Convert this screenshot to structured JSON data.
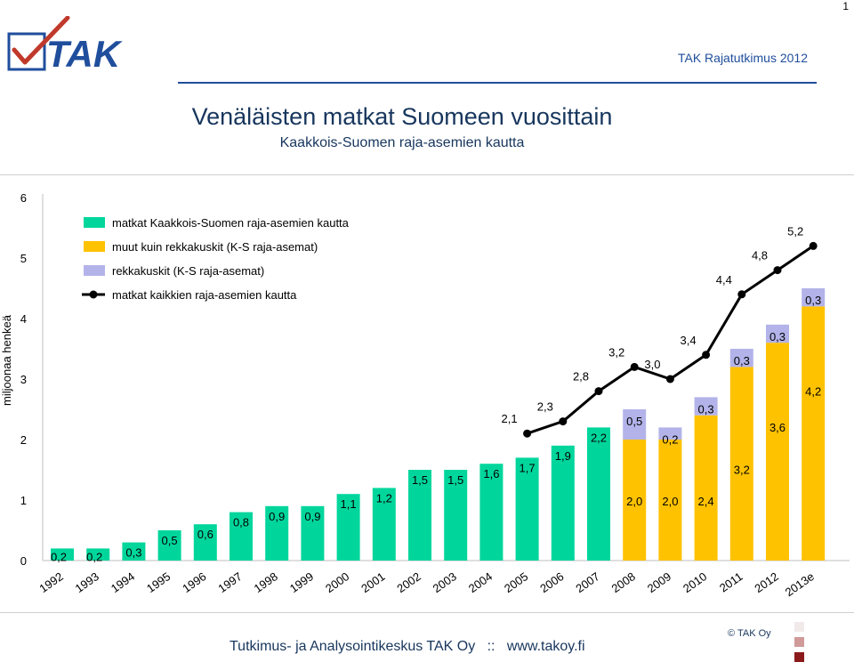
{
  "page_number": "1",
  "brand_text": "TAK Rajatutkimus 2012",
  "logo_text": "TAK",
  "footer": {
    "org": "Tutkimus- ja Analysointikeskus TAK Oy",
    "separator": "::",
    "url": "www.takoy.fi",
    "copyright": "© TAK Oy"
  },
  "colors": {
    "green": "#00d69c",
    "yellow": "#ffc200",
    "lavender": "#b3b3ea",
    "line": "#000000",
    "title": "#17365d",
    "brand": "#1f4e9c"
  },
  "chart_data": {
    "type": "bar",
    "title": "Venäläisten matkat Suomeen vuosittain",
    "subtitle": "Kaakkois-Suomen raja-asemien kautta",
    "ylabel": "miljoonaa henkeä",
    "xlabel": "",
    "ylim": [
      0,
      6
    ],
    "yticks": [
      "0",
      "1",
      "2",
      "3",
      "4",
      "5",
      "6"
    ],
    "grid": false,
    "legend_position": "top-left",
    "categories": [
      "1992",
      "1993",
      "1994",
      "1995",
      "1996",
      "1997",
      "1998",
      "1999",
      "2000",
      "2001",
      "2002",
      "2003",
      "2004",
      "2005",
      "2006",
      "2007",
      "2008",
      "2009",
      "2010",
      "2011",
      "2012",
      "2013e"
    ],
    "series": [
      {
        "name": "matkat Kaakkois-Suomen raja-asemien kautta",
        "kind": "bar",
        "color": "#00d69c",
        "values": [
          0.2,
          0.2,
          0.3,
          0.5,
          0.6,
          0.8,
          0.9,
          0.9,
          1.1,
          1.2,
          1.5,
          1.5,
          1.6,
          1.7,
          1.9,
          2.2,
          null,
          null,
          null,
          null,
          null,
          null
        ],
        "labels": [
          "0,2",
          "0,2",
          "0,3",
          "0,5",
          "0,6",
          "0,8",
          "0,9",
          "0,9",
          "1,1",
          "1,2",
          "1,5",
          "1,5",
          "1,6",
          "1,7",
          "1,9",
          "2,2",
          "",
          "",
          "",
          "",
          "",
          ""
        ]
      },
      {
        "name": "muut kuin rekkakuskit (K-S raja-asemat)",
        "kind": "bar-stack",
        "color": "#ffc200",
        "values": [
          null,
          null,
          null,
          null,
          null,
          null,
          null,
          null,
          null,
          null,
          null,
          null,
          null,
          null,
          null,
          null,
          2.0,
          2.0,
          2.4,
          3.2,
          3.6,
          4.2
        ],
        "labels": [
          "",
          "",
          "",
          "",
          "",
          "",
          "",
          "",
          "",
          "",
          "",
          "",
          "",
          "",
          "",
          "",
          "2,0",
          "2,0",
          "2,4",
          "3,2",
          "3,6",
          "4,2"
        ]
      },
      {
        "name": "rekkakuskit (K-S raja-asemat)",
        "kind": "bar-stack",
        "color": "#b3b3ea",
        "values": [
          null,
          null,
          null,
          null,
          null,
          null,
          null,
          null,
          null,
          null,
          null,
          null,
          null,
          null,
          null,
          null,
          0.5,
          0.2,
          0.3,
          0.3,
          0.3,
          0.3
        ],
        "labels": [
          "",
          "",
          "",
          "",
          "",
          "",
          "",
          "",
          "",
          "",
          "",
          "",
          "",
          "",
          "",
          "",
          "0,5",
          "0,2",
          "0,3",
          "0,3",
          "0,3",
          "0,3"
        ]
      },
      {
        "name": "matkat kaikkien raja-asemien kautta",
        "kind": "line",
        "color": "#000000",
        "values": [
          null,
          null,
          null,
          null,
          null,
          null,
          null,
          null,
          null,
          null,
          null,
          null,
          null,
          2.1,
          2.3,
          2.8,
          3.2,
          3.0,
          3.4,
          4.4,
          4.8,
          5.2
        ],
        "labels": [
          "",
          "",
          "",
          "",
          "",
          "",
          "",
          "",
          "",
          "",
          "",
          "",
          "",
          "2,1",
          "2,3",
          "2,8",
          "3,2",
          "3,0",
          "3,4",
          "4,4",
          "4,8",
          "5,2"
        ]
      }
    ]
  }
}
